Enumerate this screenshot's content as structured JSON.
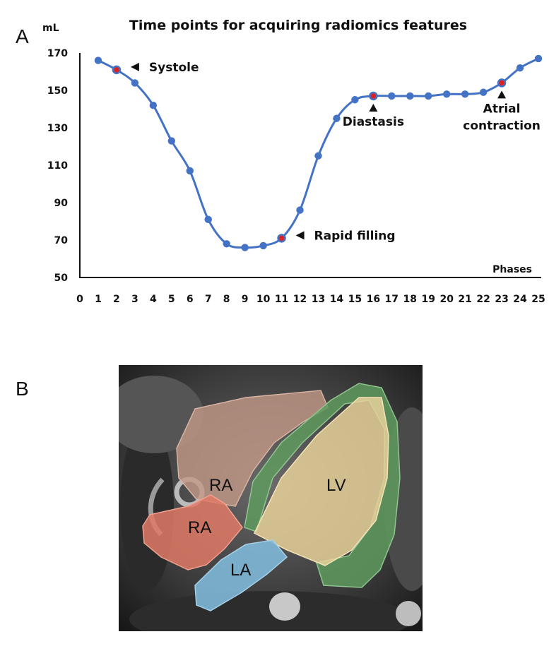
{
  "panels": {
    "a": "A",
    "b": "B"
  },
  "chart_data": {
    "type": "line",
    "title": "Time points for acquiring radiomics features",
    "ylabel": "mL",
    "xlabel": "Phases",
    "ylim": [
      50,
      170
    ],
    "yticks": [
      50,
      70,
      90,
      110,
      130,
      150,
      170
    ],
    "xlim": [
      0,
      25
    ],
    "xticks": [
      0,
      1,
      2,
      3,
      4,
      5,
      6,
      7,
      8,
      9,
      10,
      11,
      12,
      13,
      14,
      15,
      16,
      17,
      18,
      19,
      20,
      21,
      22,
      23,
      24,
      25
    ],
    "series": [
      {
        "name": "LV volume",
        "color": "#4472c4",
        "x": [
          1,
          2,
          3,
          4,
          5,
          6,
          7,
          8,
          9,
          10,
          11,
          12,
          13,
          14,
          15,
          16,
          17,
          18,
          19,
          20,
          21,
          22,
          23,
          24,
          25
        ],
        "values": [
          166,
          161,
          154,
          142,
          123,
          107,
          81,
          68,
          66,
          67,
          71,
          86,
          115,
          135,
          145,
          147,
          147,
          147,
          147,
          148,
          148,
          149,
          154,
          162,
          167
        ]
      }
    ],
    "highlight_color": "#e02020",
    "annotations": [
      {
        "phase": 2,
        "lines": [
          "Systole"
        ],
        "pointer": "left"
      },
      {
        "phase": 11,
        "lines": [
          "Rapid filling"
        ],
        "pointer": "left"
      },
      {
        "phase": 16,
        "lines": [
          "Diastasis"
        ],
        "pointer": "up"
      },
      {
        "phase": 23,
        "lines": [
          "Atrial",
          "contraction"
        ],
        "pointer": "up"
      }
    ]
  },
  "mri": {
    "labels": {
      "ra_upper": "RA",
      "ra_lower": "RA",
      "lv": "LV",
      "la": "LA"
    },
    "colors": {
      "ra_upper": "#c39a88",
      "ra_lower": "#e07a66",
      "lv": "#e8d19a",
      "la": "#7fb8d8",
      "myocardium": "#5f9a5f"
    }
  }
}
